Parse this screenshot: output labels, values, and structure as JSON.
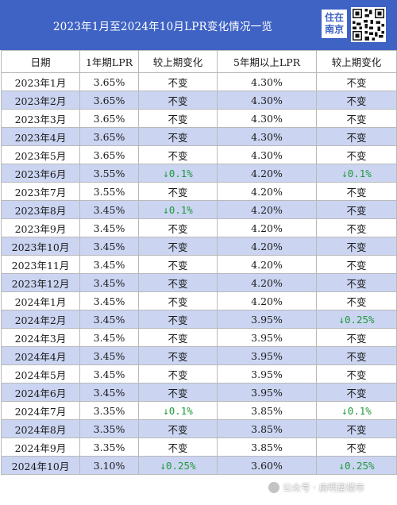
{
  "header": {
    "title": "2023年1月至2024年10月LPR变化情况一览",
    "logo_line1": "住在",
    "logo_line2": "南京"
  },
  "table": {
    "columns": [
      "日期",
      "1年期LPR",
      "较上期变化",
      "5年期以上LPR",
      "较上期变化"
    ],
    "rows": [
      [
        "2023年1月",
        "3.65%",
        "不变",
        "4.30%",
        "不变"
      ],
      [
        "2023年2月",
        "3.65%",
        "不变",
        "4.30%",
        "不变"
      ],
      [
        "2023年3月",
        "3.65%",
        "不变",
        "4.30%",
        "不变"
      ],
      [
        "2023年4月",
        "3.65%",
        "不变",
        "4.30%",
        "不变"
      ],
      [
        "2023年5月",
        "3.65%",
        "不变",
        "4.30%",
        "不变"
      ],
      [
        "2023年6月",
        "3.55%",
        "↓0.1%",
        "4.20%",
        "↓0.1%"
      ],
      [
        "2023年7月",
        "3.55%",
        "不变",
        "4.20%",
        "不变"
      ],
      [
        "2023年8月",
        "3.45%",
        "↓0.1%",
        "4.20%",
        "不变"
      ],
      [
        "2023年9月",
        "3.45%",
        "不变",
        "4.20%",
        "不变"
      ],
      [
        "2023年10月",
        "3.45%",
        "不变",
        "4.20%",
        "不变"
      ],
      [
        "2023年11月",
        "3.45%",
        "不变",
        "4.20%",
        "不变"
      ],
      [
        "2023年12月",
        "3.45%",
        "不变",
        "4.20%",
        "不变"
      ],
      [
        "2024年1月",
        "3.45%",
        "不变",
        "4.20%",
        "不变"
      ],
      [
        "2024年2月",
        "3.45%",
        "不变",
        "3.95%",
        "↓0.25%"
      ],
      [
        "2024年3月",
        "3.45%",
        "不变",
        "3.95%",
        "不变"
      ],
      [
        "2024年4月",
        "3.45%",
        "不变",
        "3.95%",
        "不变"
      ],
      [
        "2024年5月",
        "3.45%",
        "不变",
        "3.95%",
        "不变"
      ],
      [
        "2024年6月",
        "3.45%",
        "不变",
        "3.95%",
        "不变"
      ],
      [
        "2024年7月",
        "3.35%",
        "↓0.1%",
        "3.85%",
        "↓0.1%"
      ],
      [
        "2024年8月",
        "3.35%",
        "不变",
        "3.85%",
        "不变"
      ],
      [
        "2024年9月",
        "3.35%",
        "不变",
        "3.85%",
        "不变"
      ],
      [
        "2024年10月",
        "3.10%",
        "↓0.25%",
        "3.60%",
        "↓0.25%"
      ]
    ]
  },
  "watermark": {
    "text": "公众号 · 启明星楼市"
  },
  "colors": {
    "header_bg": "#3f63c4",
    "row_alt": "#cbd5f2",
    "decrease": "#1f9a3a"
  },
  "icons": {
    "qr": "qr-code-icon",
    "watermark": "wechat-icon"
  }
}
